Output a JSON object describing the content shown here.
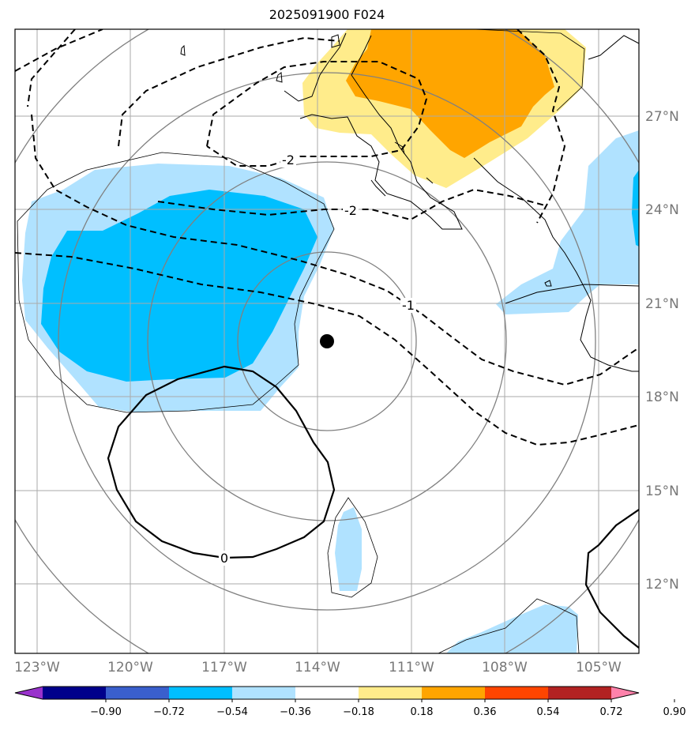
{
  "title": "2025091900 F024",
  "lon_ticks": [
    "123°W",
    "120°W",
    "117°W",
    "114°W",
    "111°W",
    "108°W",
    "105°W"
  ],
  "lat_ticks": [
    "27°N",
    "24°N",
    "21°N",
    "18°N",
    "15°N",
    "12°N"
  ],
  "contour_labels": [
    "-2",
    "-2",
    "-1",
    "0"
  ],
  "colorbar": {
    "ticks": [
      "−0.90",
      "−0.72",
      "−0.54",
      "−0.36",
      "−0.18",
      "0.18",
      "0.36",
      "0.54",
      "0.72",
      "0.90"
    ],
    "colors": [
      "#9932cc",
      "#00008b",
      "#3a5fcd",
      "#00bfff",
      "#b0e2ff",
      "#ffffff",
      "#ffec8b",
      "#ffa500",
      "#ff4500",
      "#b22222",
      "#ff82ab"
    ]
  },
  "center_marker": "storm-center",
  "colors": {
    "grid": "#aaaaaa",
    "range_rings": "#808080",
    "coast": "#000000"
  }
}
